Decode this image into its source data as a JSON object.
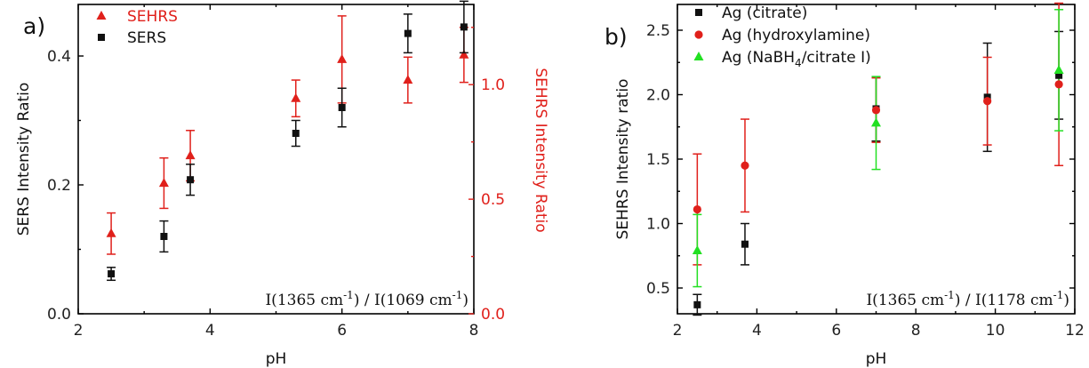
{
  "chart_data": [
    {
      "type": "scatter",
      "panel_label": "a)",
      "xlabel": "pH",
      "ylabel": "SERS Intensity Ratio",
      "y2label": "SEHRS Intensity Ratio",
      "xlim": [
        2,
        8
      ],
      "ylim": [
        0,
        0.48
      ],
      "y2lim": [
        0,
        1.35
      ],
      "xticks": [
        2,
        4,
        6,
        8
      ],
      "yticks": [
        0.0,
        0.2,
        0.4
      ],
      "y2ticks": [
        0.0,
        0.5,
        1.0
      ],
      "xtick_labels": [
        "2",
        "4",
        "6",
        "8"
      ],
      "ytick_labels": [
        "0.0",
        "0.2",
        "0.4"
      ],
      "y2tick_labels": [
        "0.0",
        "0.5",
        "1.0"
      ],
      "annotation": {
        "pre": "I(1365 cm",
        "sup1": "-1",
        "mid": ") / I(1069 cm",
        "sup2": "-1",
        "post": ")"
      },
      "legend_position": "top-left",
      "series": [
        {
          "name": "SEHRS",
          "marker": "triangle",
          "color": "#e0201b",
          "axis": "right",
          "x": [
            2.5,
            3.3,
            3.7,
            5.3,
            6.0,
            7.0,
            7.85
          ],
          "y": [
            0.35,
            0.57,
            0.69,
            0.94,
            1.11,
            1.02,
            1.13
          ],
          "err": [
            0.09,
            0.11,
            0.11,
            0.08,
            0.19,
            0.1,
            0.12
          ]
        },
        {
          "name": "SERS",
          "marker": "square",
          "color": "#111111",
          "axis": "left",
          "x": [
            2.5,
            3.3,
            3.7,
            5.3,
            6.0,
            7.0,
            7.85
          ],
          "y": [
            0.062,
            0.12,
            0.208,
            0.28,
            0.32,
            0.435,
            0.445
          ],
          "err": [
            0.01,
            0.024,
            0.024,
            0.02,
            0.03,
            0.03,
            0.04
          ]
        }
      ]
    },
    {
      "type": "scatter",
      "panel_label": "b)",
      "xlabel": "pH",
      "ylabel": "SEHRS Intensity ratio",
      "xlim": [
        2,
        12
      ],
      "ylim": [
        0.3,
        2.7
      ],
      "xticks": [
        2,
        4,
        6,
        8,
        10,
        12
      ],
      "yticks": [
        0.5,
        1.0,
        1.5,
        2.0,
        2.5
      ],
      "xtick_labels": [
        "2",
        "4",
        "6",
        "8",
        "10",
        "12"
      ],
      "ytick_labels": [
        "0.5",
        "1.0",
        "1.5",
        "2.0",
        "2.5"
      ],
      "annotation": {
        "pre": "I(1365 cm",
        "sup1": "-1",
        "mid": ") / I(1178 cm",
        "sup2": "-1",
        "post": ")"
      },
      "legend_position": "top-left",
      "series": [
        {
          "name": "Ag (citrate)",
          "label_parts": {
            "pre": "Ag (citrate)",
            "sub": "",
            "post": ""
          },
          "marker": "square",
          "color": "#111111",
          "x": [
            2.5,
            3.7,
            7.0,
            9.8,
            11.6
          ],
          "y": [
            0.37,
            0.84,
            1.89,
            1.98,
            2.15
          ],
          "err": [
            0.08,
            0.16,
            0.25,
            0.42,
            0.34
          ]
        },
        {
          "name": "Ag (hydroxylamine)",
          "label_parts": {
            "pre": "Ag (hydroxylamine)",
            "sub": "",
            "post": ""
          },
          "marker": "circle",
          "color": "#e0201b",
          "x": [
            2.5,
            3.7,
            7.0,
            9.8,
            11.6
          ],
          "y": [
            1.11,
            1.45,
            1.88,
            1.95,
            2.08
          ],
          "err": [
            0.43,
            0.36,
            0.25,
            0.34,
            0.63
          ]
        },
        {
          "name": "Ag (NaBH4/citrate I)",
          "label_parts": {
            "pre": "Ag (NaBH",
            "sub": "4",
            "post": "/citrate I)"
          },
          "marker": "triangle",
          "color": "#22e022",
          "x": [
            2.5,
            7.0,
            11.6
          ],
          "y": [
            0.79,
            1.78,
            2.19
          ],
          "err": [
            0.28,
            0.36,
            0.47
          ]
        }
      ]
    }
  ]
}
